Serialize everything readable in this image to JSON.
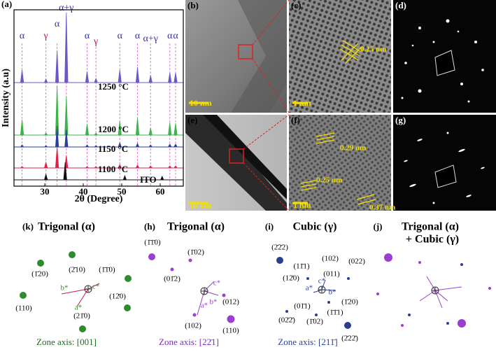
{
  "xrd": {
    "label": "(a)",
    "y_label": "Intensity (a.u)",
    "x_label": "2θ (Degree)",
    "xlim": [
      22,
      66
    ],
    "ylim": [
      0,
      252
    ],
    "xticks": [
      30,
      40,
      50,
      60
    ],
    "reference_lines": [
      24.1,
      30.3,
      33.2,
      35.6,
      41.0,
      43.3,
      49.5,
      54.1,
      57.5,
      62.5,
      64.0
    ],
    "phase_labels": [
      {
        "x": 24.1,
        "text": "α",
        "color": "#3b2fa0"
      },
      {
        "x": 30.3,
        "text": "γ",
        "color": "#c8183c"
      },
      {
        "x": 33.2,
        "text": "α",
        "color": "#3b2fa0"
      },
      {
        "x": 35.6,
        "text": "α+γ",
        "color": "#3b2fa0"
      },
      {
        "x": 41.0,
        "text": "α",
        "color": "#3b2fa0"
      },
      {
        "x": 43.3,
        "text": "γ",
        "color": "#c8183c"
      },
      {
        "x": 49.5,
        "text": "α",
        "color": "#3b2fa0"
      },
      {
        "x": 54.1,
        "text": "α",
        "color": "#3b2fa0"
      },
      {
        "x": 57.5,
        "text": "α+γ",
        "color": "#3b2fa0"
      },
      {
        "x": 62.5,
        "text": "α",
        "color": "#3b2fa0"
      },
      {
        "x": 64.0,
        "text": "α",
        "color": "#3b2fa0"
      }
    ],
    "series": [
      {
        "name": "1250 °C",
        "color": "#6a58c8",
        "x": [
          24.1,
          30.3,
          33.2,
          35.6,
          41.0,
          43.3,
          49.5,
          54.1,
          57.5,
          62.5,
          64.0
        ],
        "values": [
          18,
          5,
          45,
          100,
          16,
          6,
          18,
          22,
          10,
          14,
          14
        ]
      },
      {
        "name": "1200 °C",
        "color": "#3cb44b",
        "x": [
          24.1,
          30.3,
          33.2,
          35.6,
          41.0,
          43.3,
          49.5,
          54.1,
          57.5,
          62.5,
          64.0
        ],
        "values": [
          22,
          3,
          70,
          55,
          16,
          3,
          20,
          25,
          10,
          18,
          17
        ]
      },
      {
        "name": "1150 °C",
        "color": "#2a3f9e",
        "x": [
          24.1,
          30.3,
          33.2,
          35.6,
          41.0,
          43.3,
          49.5,
          54.1,
          57.5,
          62.5,
          64.0
        ],
        "values": [
          3,
          2,
          30,
          25,
          3,
          2,
          6,
          5,
          3,
          4,
          4
        ]
      },
      {
        "name": "1100 °C",
        "color": "#e0204a",
        "x": [
          24.1,
          30.3,
          33.2,
          35.6,
          41.0,
          43.3,
          49.5,
          54.1,
          57.5,
          62.5,
          64.0
        ],
        "values": [
          2,
          8,
          30,
          18,
          2,
          2,
          5,
          4,
          3,
          3,
          3
        ]
      },
      {
        "name": "ITO",
        "color": "#111111",
        "x": [
          30.3,
          35.3,
          50.8,
          60.5
        ],
        "values": [
          8,
          25,
          6,
          5
        ]
      }
    ]
  },
  "tem_images": [
    {
      "label": "(b)",
      "scale_bar": "10 nm",
      "annotations": []
    },
    {
      "label": "(c)",
      "scale_bar": "1 nm",
      "annotations": [
        "0.25 nm"
      ]
    },
    {
      "label": "(d)",
      "scale_bar": null,
      "annotations": []
    },
    {
      "label": "(e)",
      "scale_bar": "10 nm",
      "annotations": []
    },
    {
      "label": "(f)",
      "scale_bar": "1 nm",
      "annotations": [
        "0.29 nm",
        "0.25 nm",
        "0.37 nm"
      ]
    },
    {
      "label": "(g)",
      "scale_bar": null,
      "annotations": []
    }
  ],
  "diffraction_patterns": [
    {
      "label": "(k)",
      "title": [
        "Trigonal (α)"
      ],
      "zone_axis": "Zone axis: [001]",
      "zone_color": "#1e6b1e",
      "spots": [
        "(1̄20)",
        "(2̄10)",
        "(1̄1̄0)",
        "(110)",
        "(12̄0)",
        "(21̄0)"
      ],
      "vectors": [
        "b*",
        "c*",
        "a*"
      ]
    },
    {
      "label": "(h)",
      "title": [
        "Trigonal (α)"
      ],
      "zone_axis": "Zone axis: [22̄1]",
      "zone_color": "#7a2fc0",
      "spots": [
        "(1̄1̄0)",
        "(1̄02)",
        "(01̄2)",
        "(012)",
        "(102)",
        "(110)"
      ],
      "vectors": [
        "c*",
        "a*",
        "b*"
      ]
    },
    {
      "label": "(i)",
      "title": [
        "Cubic (γ)"
      ],
      "zone_axis": "Zone axis: [211̄]",
      "zone_color": "#2a3f9e",
      "spots": [
        "(2̄2̄2)",
        "(11̄1)",
        "(102)",
        "(022)",
        "(12̄0)",
        "(011)",
        "(1̄20)",
        "(01̄1)",
        "(1̄1̄1)",
        "(02̄2̄)",
        "(1̄02)",
        "(2̄22̄)"
      ],
      "vectors": [
        "c*",
        "a*",
        "b*"
      ]
    },
    {
      "label": "(j)",
      "title": [
        "Trigonal (α)",
        "+ Cubic (γ)"
      ],
      "zone_axis": null,
      "zone_color": null,
      "spots": [],
      "vectors": []
    }
  ]
}
